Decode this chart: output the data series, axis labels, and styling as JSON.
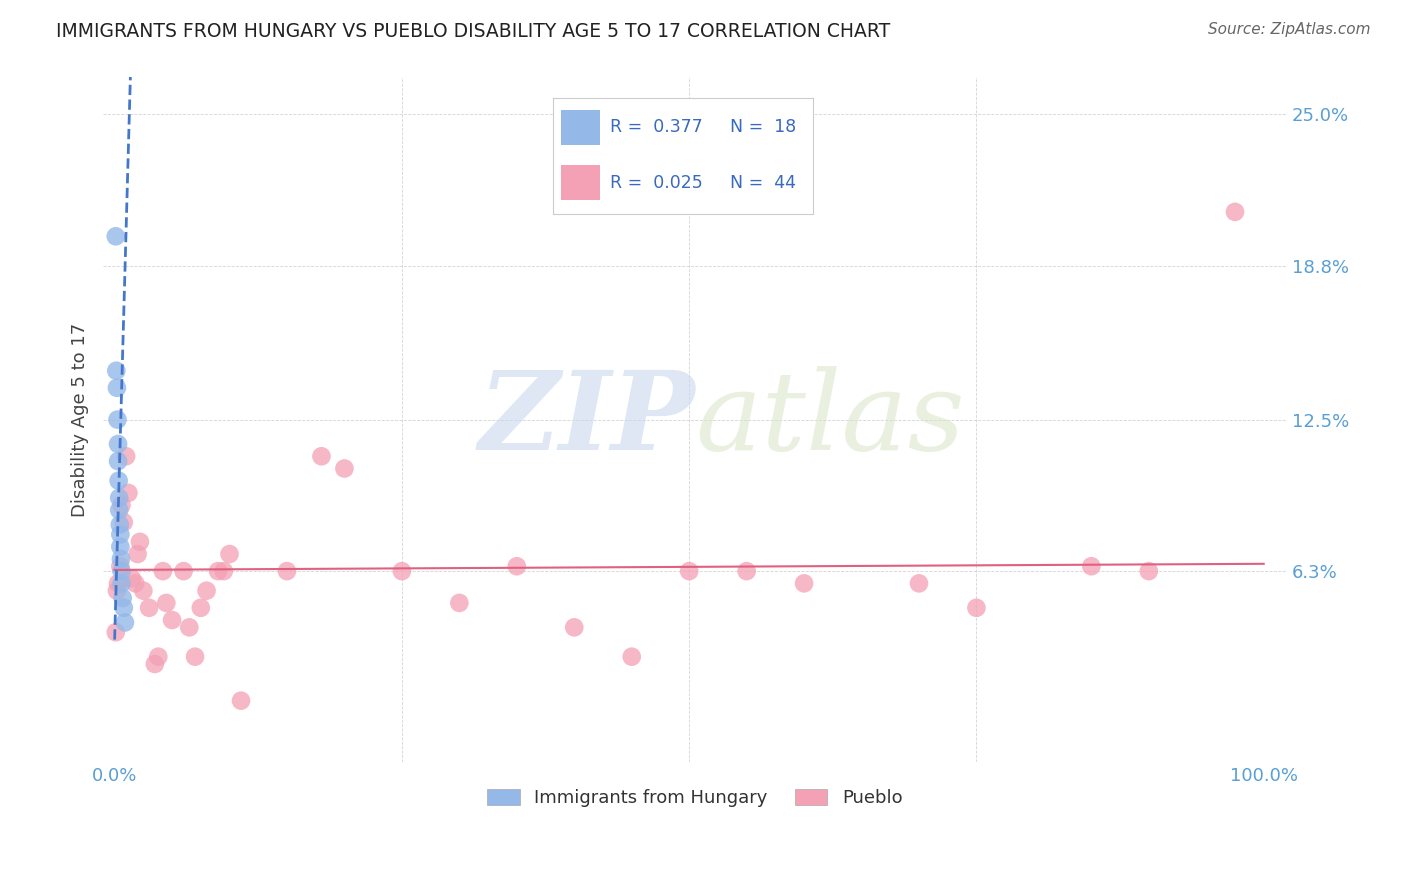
{
  "title": "IMMIGRANTS FROM HUNGARY VS PUEBLO DISABILITY AGE 5 TO 17 CORRELATION CHART",
  "source": "Source: ZipAtlas.com",
  "ylabel": "Disability Age 5 to 17",
  "xlim": [
    -0.01,
    1.02
  ],
  "ylim": [
    -0.015,
    0.265
  ],
  "yticks": [
    0.063,
    0.125,
    0.188,
    0.25
  ],
  "ytick_labels": [
    "6.3%",
    "12.5%",
    "18.8%",
    "25.0%"
  ],
  "xtick_left_label": "0.0%",
  "xtick_right_label": "100.0%",
  "legend_r1": "R = 0.377",
  "legend_n1": "N = 18",
  "legend_r2": "R = 0.025",
  "legend_n2": "N = 44",
  "blue_color": "#94b8e8",
  "pink_color": "#f4a0b5",
  "blue_label": "Immigrants from Hungary",
  "pink_label": "Pueblo",
  "watermark_zip": "ZIP",
  "watermark_atlas": "atlas",
  "blue_scatter_x": [
    0.001,
    0.0015,
    0.002,
    0.0025,
    0.003,
    0.003,
    0.0035,
    0.004,
    0.004,
    0.0045,
    0.005,
    0.005,
    0.0055,
    0.006,
    0.006,
    0.007,
    0.008,
    0.009
  ],
  "blue_scatter_y": [
    0.2,
    0.145,
    0.138,
    0.125,
    0.115,
    0.108,
    0.1,
    0.093,
    0.088,
    0.082,
    0.078,
    0.073,
    0.068,
    0.063,
    0.058,
    0.052,
    0.048,
    0.042
  ],
  "pink_scatter_x": [
    0.001,
    0.002,
    0.003,
    0.005,
    0.006,
    0.008,
    0.01,
    0.012,
    0.015,
    0.018,
    0.02,
    0.022,
    0.025,
    0.03,
    0.035,
    0.038,
    0.042,
    0.045,
    0.05,
    0.06,
    0.065,
    0.07,
    0.075,
    0.08,
    0.09,
    0.095,
    0.1,
    0.11,
    0.15,
    0.18,
    0.2,
    0.25,
    0.3,
    0.35,
    0.4,
    0.45,
    0.5,
    0.55,
    0.6,
    0.7,
    0.75,
    0.85,
    0.9,
    0.975
  ],
  "pink_scatter_y": [
    0.038,
    0.055,
    0.058,
    0.065,
    0.09,
    0.083,
    0.11,
    0.095,
    0.06,
    0.058,
    0.07,
    0.075,
    0.055,
    0.048,
    0.025,
    0.028,
    0.063,
    0.05,
    0.043,
    0.063,
    0.04,
    0.028,
    0.048,
    0.055,
    0.063,
    0.063,
    0.07,
    0.01,
    0.063,
    0.11,
    0.105,
    0.063,
    0.05,
    0.065,
    0.04,
    0.028,
    0.063,
    0.063,
    0.058,
    0.058,
    0.048,
    0.065,
    0.063,
    0.21
  ],
  "blue_trend_x": [
    0.0,
    0.014
  ],
  "blue_trend_y": [
    0.035,
    0.27
  ],
  "pink_trend_x": [
    0.0,
    1.0
  ],
  "pink_trend_y": [
    0.0635,
    0.066
  ],
  "grid_color": "#d0d0d0",
  "tick_color": "#5a9fd4",
  "title_color": "#222222",
  "source_color": "#666666",
  "ylabel_color": "#444444"
}
